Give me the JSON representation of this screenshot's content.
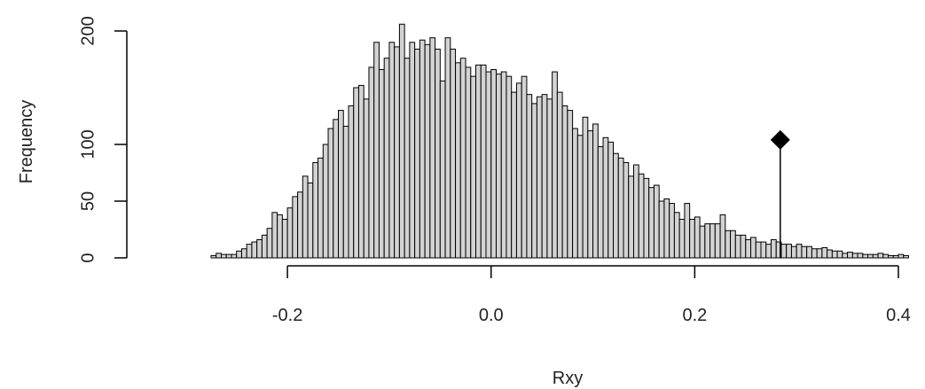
{
  "chart_data": {
    "type": "bar",
    "title": "",
    "xlabel": "Rxy",
    "ylabel": "Frequency",
    "bin_width": 0.005,
    "x_start": -0.275,
    "xlim": [
      -0.275,
      0.4
    ],
    "ylim": [
      0,
      207
    ],
    "x_ticks": [
      -0.2,
      0.0,
      0.2,
      0.4
    ],
    "x_tick_labels": [
      "-0.2",
      "0.0",
      "0.2",
      "0.4"
    ],
    "y_ticks": [
      0,
      50,
      100,
      200
    ],
    "y_tick_labels": [
      "0",
      "50",
      "100",
      "200"
    ],
    "counts": [
      2,
      4,
      3,
      3,
      3,
      6,
      8,
      12,
      14,
      16,
      20,
      26,
      40,
      38,
      34,
      44,
      54,
      58,
      72,
      66,
      84,
      88,
      100,
      114,
      122,
      130,
      116,
      134,
      150,
      152,
      140,
      168,
      190,
      166,
      176,
      190,
      186,
      206,
      176,
      190,
      184,
      192,
      188,
      194,
      184,
      156,
      194,
      184,
      172,
      176,
      168,
      160,
      170,
      170,
      164,
      166,
      162,
      164,
      160,
      146,
      154,
      160,
      144,
      136,
      142,
      144,
      140,
      164,
      146,
      134,
      130,
      114,
      108,
      124,
      112,
      118,
      98,
      106,
      102,
      92,
      88,
      84,
      72,
      82,
      74,
      70,
      62,
      64,
      50,
      52,
      48,
      40,
      34,
      48,
      34,
      36,
      28,
      30,
      30,
      30,
      38,
      24,
      24,
      20,
      20,
      16,
      18,
      14,
      14,
      12,
      16,
      14,
      12,
      12,
      10,
      12,
      10,
      10,
      8,
      8,
      9,
      7,
      6,
      6,
      4,
      5,
      4,
      4,
      3,
      3,
      3,
      4,
      3,
      2,
      2,
      3,
      2
    ],
    "bar_fill": "#d3d3d3",
    "bar_stroke": "#000000",
    "observed": {
      "x": 0.284,
      "y": 104,
      "marker": "diamond",
      "color": "#000000"
    }
  }
}
